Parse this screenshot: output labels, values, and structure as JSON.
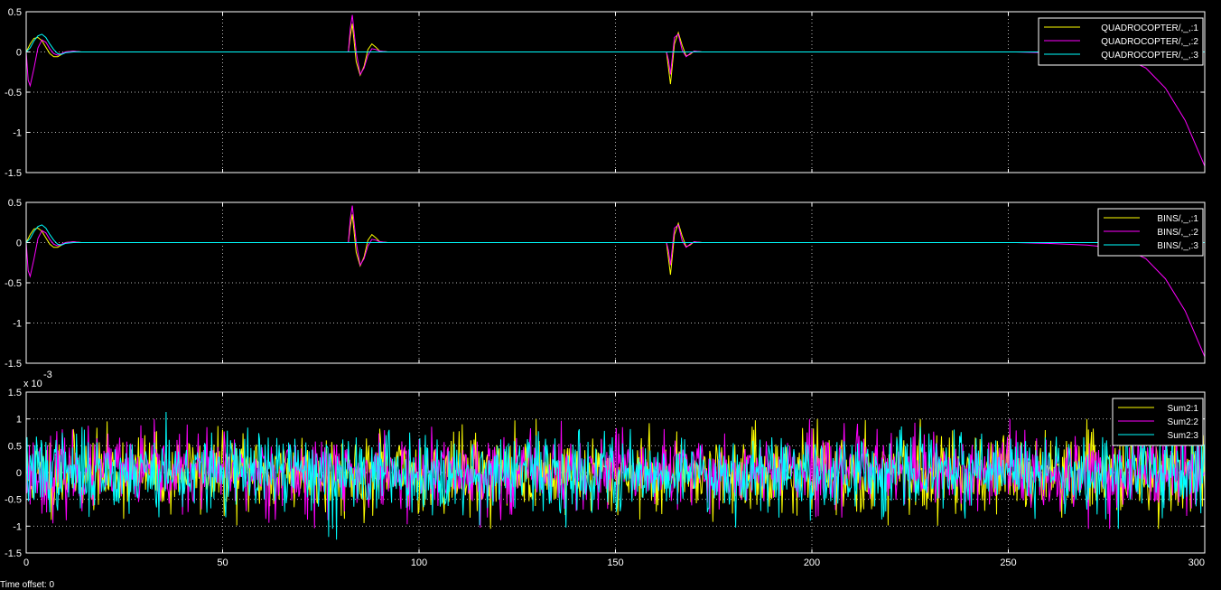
{
  "footer_text": "Time offset:  0",
  "chart_data": [
    {
      "type": "line",
      "title": "",
      "xlabel": "",
      "ylabel": "",
      "xlim": [
        0,
        300
      ],
      "ylim": [
        -1.5,
        0.5
      ],
      "yticks": [
        -1.5,
        -1,
        -0.5,
        0,
        0.5
      ],
      "ytick_labels": [
        "-1.5",
        "-1",
        "-0.5",
        "0",
        "0.5"
      ],
      "grid": true,
      "legend_position": "top-right",
      "series": [
        {
          "name": "QUADROCOPTER/,_,:1",
          "color": "#ffff00",
          "x": [
            0,
            1,
            2,
            3,
            4,
            5,
            6,
            7,
            8,
            9,
            10,
            12,
            14,
            82,
            82.5,
            83,
            84,
            85,
            86,
            87,
            88,
            89,
            90,
            92,
            163,
            163.5,
            164,
            165,
            166,
            167,
            168,
            169,
            170,
            172,
            252,
            300
          ],
          "y": [
            0,
            0.1,
            0.17,
            0.18,
            0.14,
            0.06,
            -0.02,
            -0.06,
            -0.06,
            -0.03,
            0,
            0.01,
            0,
            0,
            0.2,
            0.35,
            -0.12,
            -0.29,
            -0.18,
            0.03,
            0.1,
            0.06,
            0.01,
            0,
            0,
            -0.2,
            -0.4,
            0.1,
            0.24,
            0.08,
            -0.05,
            -0.03,
            0.01,
            0,
            0,
            0
          ]
        },
        {
          "name": "QUADROCOPTER/,_,:2",
          "color": "#ff00ff",
          "x": [
            0,
            0.5,
            1,
            2,
            3,
            4,
            5,
            6,
            7,
            8,
            9,
            10,
            12,
            14,
            82,
            82.5,
            83,
            84,
            85,
            86,
            87,
            88,
            89,
            90,
            92,
            163,
            163.5,
            164,
            165,
            166,
            167,
            168,
            169,
            170,
            172,
            252,
            260,
            270,
            280,
            285,
            290,
            295,
            300
          ],
          "y": [
            0,
            -0.35,
            -0.42,
            -0.2,
            0.05,
            0.15,
            0.12,
            0.04,
            -0.02,
            -0.04,
            -0.02,
            0,
            0.01,
            0,
            0,
            0.3,
            0.46,
            0,
            -0.28,
            -0.2,
            -0.04,
            0.04,
            0.03,
            0.01,
            0,
            0,
            -0.1,
            -0.28,
            0.18,
            0.22,
            0.02,
            -0.06,
            -0.02,
            0.01,
            0,
            0,
            -0.01,
            -0.03,
            -0.08,
            -0.2,
            -0.45,
            -0.85,
            -1.42
          ]
        },
        {
          "name": "QUADROCOPTER/,_,:3",
          "color": "#00ffff",
          "x": [
            0,
            1,
            2,
            3,
            4,
            5,
            6,
            7,
            8,
            9,
            10,
            12,
            14,
            300
          ],
          "y": [
            0,
            0.05,
            0.14,
            0.2,
            0.22,
            0.18,
            0.1,
            0.03,
            -0.02,
            -0.03,
            -0.01,
            0,
            0,
            0
          ]
        }
      ]
    },
    {
      "type": "line",
      "title": "",
      "xlabel": "",
      "ylabel": "",
      "xlim": [
        0,
        300
      ],
      "ylim": [
        -1.5,
        0.5
      ],
      "yticks": [
        -1.5,
        -1,
        -0.5,
        0,
        0.5
      ],
      "ytick_labels": [
        "-1.5",
        "-1",
        "-0.5",
        "0",
        "0.5"
      ],
      "grid": true,
      "legend_position": "top-right",
      "series": [
        {
          "name": "BINS/,_,:1",
          "color": "#ffff00",
          "x": [
            0,
            1,
            2,
            3,
            4,
            5,
            6,
            7,
            8,
            9,
            10,
            12,
            14,
            82,
            82.5,
            83,
            84,
            85,
            86,
            87,
            88,
            89,
            90,
            92,
            163,
            163.5,
            164,
            165,
            166,
            167,
            168,
            169,
            170,
            172,
            252,
            300
          ],
          "y": [
            0,
            0.1,
            0.17,
            0.18,
            0.14,
            0.06,
            -0.02,
            -0.06,
            -0.06,
            -0.03,
            0,
            0.01,
            0,
            0,
            0.2,
            0.35,
            -0.12,
            -0.29,
            -0.18,
            0.03,
            0.1,
            0.06,
            0.01,
            0,
            0,
            -0.2,
            -0.4,
            0.1,
            0.24,
            0.08,
            -0.05,
            -0.03,
            0.01,
            0,
            0,
            0
          ]
        },
        {
          "name": "BINS/,_,:2",
          "color": "#ff00ff",
          "x": [
            0,
            0.5,
            1,
            2,
            3,
            4,
            5,
            6,
            7,
            8,
            9,
            10,
            12,
            14,
            82,
            82.5,
            83,
            84,
            85,
            86,
            87,
            88,
            89,
            90,
            92,
            163,
            163.5,
            164,
            165,
            166,
            167,
            168,
            169,
            170,
            172,
            252,
            260,
            270,
            280,
            285,
            290,
            295,
            300
          ],
          "y": [
            0,
            -0.35,
            -0.42,
            -0.2,
            0.05,
            0.15,
            0.12,
            0.04,
            -0.02,
            -0.04,
            -0.02,
            0,
            0.01,
            0,
            0,
            0.3,
            0.46,
            0,
            -0.28,
            -0.2,
            -0.04,
            0.04,
            0.03,
            0.01,
            0,
            0,
            -0.1,
            -0.28,
            0.18,
            0.22,
            0.02,
            -0.06,
            -0.02,
            0.01,
            0,
            0,
            -0.01,
            -0.03,
            -0.08,
            -0.2,
            -0.45,
            -0.85,
            -1.42
          ]
        },
        {
          "name": "BINS/,_,:3",
          "color": "#00ffff",
          "x": [
            0,
            1,
            2,
            3,
            4,
            5,
            6,
            7,
            8,
            9,
            10,
            12,
            14,
            300
          ],
          "y": [
            0,
            0.05,
            0.14,
            0.2,
            0.22,
            0.18,
            0.1,
            0.03,
            -0.02,
            -0.03,
            -0.01,
            0,
            0,
            0
          ]
        }
      ]
    },
    {
      "type": "line",
      "title": "",
      "xlabel": "",
      "ylabel": "",
      "xlim": [
        0,
        300
      ],
      "ylim": [
        -1.5,
        1.5
      ],
      "yticks": [
        -1.5,
        -1,
        -0.5,
        0,
        0.5,
        1,
        1.5
      ],
      "ytick_labels": [
        "-1.5",
        "-1",
        "-0.5",
        "0",
        "0.5",
        "1",
        "1.5"
      ],
      "y_exponent_base": "x 10",
      "y_exponent_power": "-3",
      "xticks": [
        0,
        50,
        100,
        150,
        200,
        250,
        300
      ],
      "xtick_labels": [
        "0",
        "50",
        "100",
        "150",
        "200",
        "250",
        "300"
      ],
      "grid": true,
      "legend_position": "top-right",
      "series": [
        {
          "name": "Sum2:1",
          "color": "#ffff00",
          "noise_std": 0.35,
          "seed": 11
        },
        {
          "name": "Sum2:2",
          "color": "#ff00ff",
          "noise_std": 0.35,
          "seed": 23
        },
        {
          "name": "Sum2:3",
          "color": "#00ffff",
          "noise_std": 0.35,
          "seed": 37,
          "samples": 1500,
          "peak_max": 1.13,
          "peak_min": -1.25
        }
      ]
    }
  ]
}
